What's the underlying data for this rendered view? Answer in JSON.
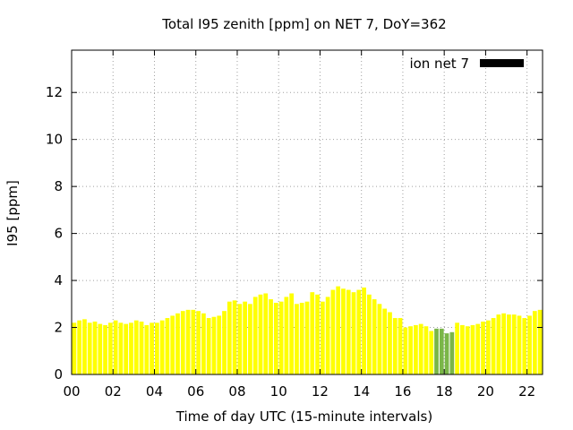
{
  "chart_data": {
    "type": "bar",
    "title": "Total I95 zenith [ppm] on NET 7, DoY=362",
    "xlabel": "Time of day UTC (15-minute intervals)",
    "ylabel": "I95 [ppm]",
    "xlim": [
      0,
      22.75
    ],
    "ylim": [
      0,
      13.8
    ],
    "x_ticks": [
      0,
      2,
      4,
      6,
      8,
      10,
      12,
      14,
      16,
      18,
      20,
      22
    ],
    "x_tick_labels": [
      "00",
      "02",
      "04",
      "06",
      "08",
      "10",
      "12",
      "14",
      "16",
      "18",
      "20",
      "22"
    ],
    "y_ticks": [
      0,
      2,
      4,
      6,
      8,
      10,
      12
    ],
    "y_tick_labels": [
      "0",
      "2",
      "4",
      "6",
      "8",
      "10",
      "12"
    ],
    "grid": true,
    "legend": {
      "position": "top-right",
      "label": "ion net 7",
      "color": "#000000"
    },
    "interval_hours": 0.25,
    "color_default": "#ffff00",
    "color_highlight": "#7ab648",
    "highlight_range": [
      17.5,
      18.5
    ],
    "values": [
      2.2,
      2.3,
      2.35,
      2.2,
      2.25,
      2.15,
      2.1,
      2.2,
      2.3,
      2.2,
      2.15,
      2.2,
      2.3,
      2.25,
      2.1,
      2.2,
      2.2,
      2.3,
      2.4,
      2.5,
      2.6,
      2.7,
      2.75,
      2.75,
      2.7,
      2.6,
      2.4,
      2.45,
      2.5,
      2.7,
      3.1,
      3.15,
      3.0,
      3.1,
      3.0,
      3.3,
      3.4,
      3.45,
      3.2,
      3.05,
      3.1,
      3.3,
      3.45,
      3.0,
      3.05,
      3.1,
      3.5,
      3.4,
      3.1,
      3.3,
      3.6,
      3.75,
      3.65,
      3.6,
      3.5,
      3.6,
      3.7,
      3.4,
      3.2,
      3.0,
      2.8,
      2.65,
      2.4,
      2.4,
      2.0,
      2.05,
      2.1,
      2.15,
      2.05,
      1.85,
      1.95,
      1.95,
      1.75,
      1.8,
      2.2,
      2.1,
      2.05,
      2.1,
      2.15,
      2.25,
      2.3,
      2.4,
      2.55,
      2.6,
      2.55,
      2.55,
      2.5,
      2.4,
      2.5,
      2.7,
      2.75
    ]
  }
}
